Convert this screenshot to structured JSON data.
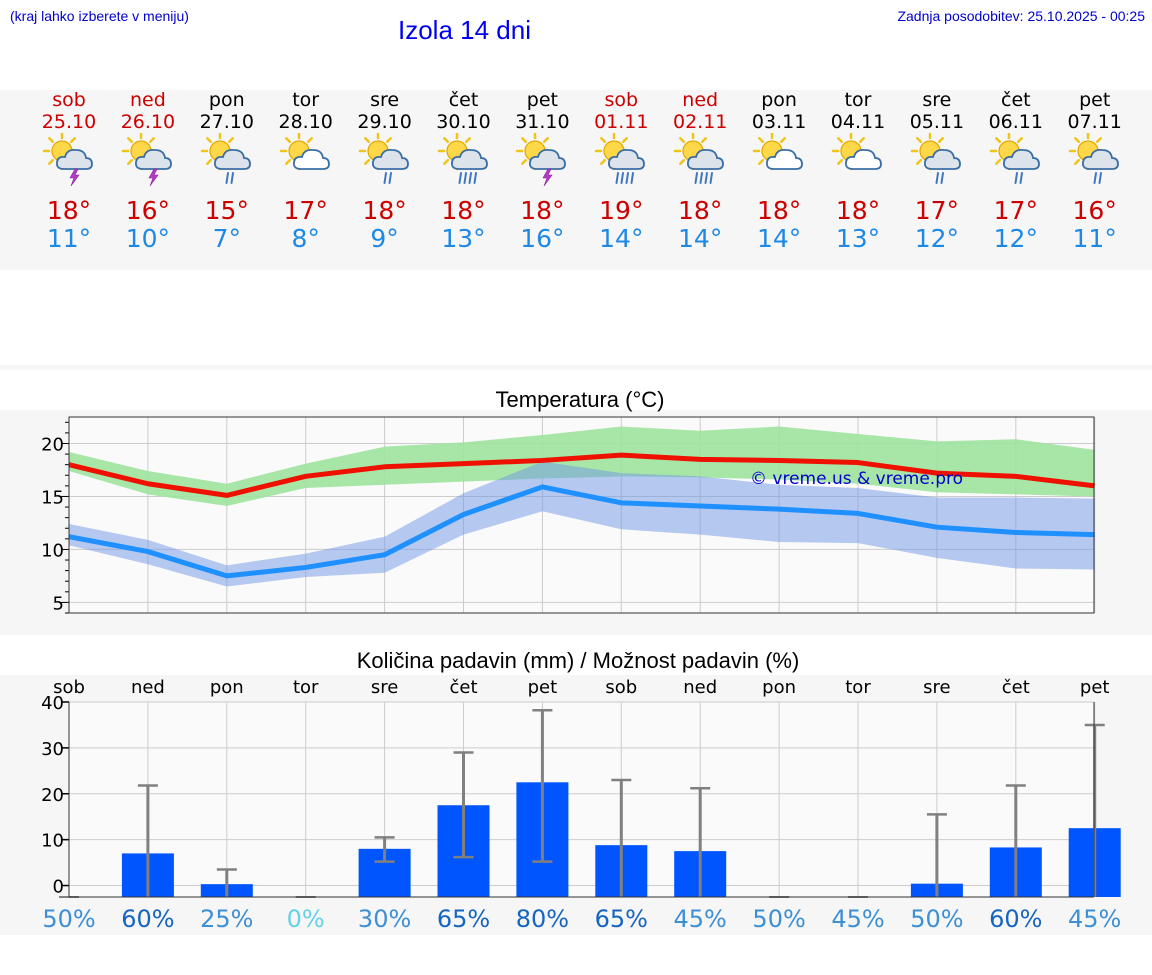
{
  "header": {
    "hint": "(kraj lahko izberete v meniju)",
    "title": "Izola 14 dni",
    "updated": "Zadnja posodobitev: 25.10.2025 - 00:25"
  },
  "days": [
    {
      "name": "sob",
      "date": "25.10",
      "weekend": true,
      "icon": "sun-cloud-thunder",
      "tmax": "18°",
      "tmin": "11°"
    },
    {
      "name": "ned",
      "date": "26.10",
      "weekend": true,
      "icon": "sun-cloud-thunder",
      "tmax": "16°",
      "tmin": "10°"
    },
    {
      "name": "pon",
      "date": "27.10",
      "weekend": false,
      "icon": "sun-cloud-rain",
      "tmax": "15°",
      "tmin": "7°"
    },
    {
      "name": "tor",
      "date": "28.10",
      "weekend": false,
      "icon": "sun-cloud",
      "tmax": "17°",
      "tmin": "8°"
    },
    {
      "name": "sre",
      "date": "29.10",
      "weekend": false,
      "icon": "sun-cloud-rain",
      "tmax": "18°",
      "tmin": "9°"
    },
    {
      "name": "čet",
      "date": "30.10",
      "weekend": false,
      "icon": "sun-cloud-heavy-rain",
      "tmax": "18°",
      "tmin": "13°"
    },
    {
      "name": "pet",
      "date": "31.10",
      "weekend": false,
      "icon": "sun-cloud-thunder",
      "tmax": "18°",
      "tmin": "16°"
    },
    {
      "name": "sob",
      "date": "01.11",
      "weekend": true,
      "icon": "sun-cloud-heavy-rain",
      "tmax": "19°",
      "tmin": "14°"
    },
    {
      "name": "ned",
      "date": "02.11",
      "weekend": true,
      "icon": "sun-cloud-heavy-rain",
      "tmax": "18°",
      "tmin": "14°"
    },
    {
      "name": "pon",
      "date": "03.11",
      "weekend": false,
      "icon": "sun-cloud",
      "tmax": "18°",
      "tmin": "14°"
    },
    {
      "name": "tor",
      "date": "04.11",
      "weekend": false,
      "icon": "sun-cloud",
      "tmax": "18°",
      "tmin": "13°"
    },
    {
      "name": "sre",
      "date": "05.11",
      "weekend": false,
      "icon": "sun-cloud-rain",
      "tmax": "17°",
      "tmin": "12°"
    },
    {
      "name": "čet",
      "date": "06.11",
      "weekend": false,
      "icon": "sun-cloud-rain",
      "tmax": "17°",
      "tmin": "12°"
    },
    {
      "name": "pet",
      "date": "07.11",
      "weekend": false,
      "icon": "sun-cloud-rain",
      "tmax": "16°",
      "tmin": "11°"
    }
  ],
  "colors": {
    "weekend": "#cc0000",
    "weekday": "#000000",
    "max_line": "#ee1100",
    "min_line": "#1e90ff",
    "max_band": "#9ee39e",
    "min_band": "#a8c2f2",
    "bar": "#0055ff",
    "whisker": "#808080",
    "pct_dark": "#1565c0",
    "pct_mid": "#3d8fd6",
    "pct_light": "#64d2e6",
    "watermark": "#0000cc"
  },
  "chart_data": [
    {
      "type": "line",
      "title": "Temperatura (°C)",
      "x": [
        "sob",
        "ned",
        "pon",
        "tor",
        "sre",
        "čet",
        "pet",
        "sob",
        "ned",
        "pon",
        "tor",
        "sre",
        "čet",
        "pet"
      ],
      "ylim": [
        4,
        22.5
      ],
      "yticks": [
        5,
        10,
        15,
        20
      ],
      "grid": true,
      "watermark": "© vreme.us & vreme.pro",
      "series": [
        {
          "role": "max",
          "values": [
            18,
            16.2,
            15.1,
            16.9,
            17.8,
            18.1,
            18.4,
            18.9,
            18.5,
            18.4,
            18.2,
            17.2,
            16.9,
            16
          ],
          "band_low": [
            17.4,
            15.2,
            14.1,
            15.8,
            16.1,
            16.4,
            16.7,
            16.9,
            16.8,
            16.6,
            16.2,
            15.4,
            15.2,
            15
          ],
          "band_high": [
            19.2,
            17.4,
            16.2,
            18.1,
            19.7,
            20.1,
            20.8,
            21.6,
            21.2,
            21.6,
            20.9,
            20.2,
            20.4,
            19.4
          ]
        },
        {
          "role": "min",
          "values": [
            11.2,
            9.8,
            7.5,
            8.3,
            9.5,
            13.3,
            15.9,
            14.4,
            14.1,
            13.8,
            13.4,
            12.1,
            11.6,
            11.4
          ],
          "band_low": [
            10.4,
            8.6,
            6.5,
            7.4,
            7.8,
            11.4,
            13.6,
            11.9,
            11.4,
            10.7,
            10.6,
            9.2,
            8.2,
            8.1
          ],
          "band_high": [
            12.4,
            10.9,
            8.5,
            9.6,
            11.2,
            15.3,
            18.3,
            17.2,
            16.9,
            16.1,
            15.8,
            14.9,
            14.9,
            14.8
          ]
        }
      ]
    },
    {
      "type": "bar",
      "title": "Količina padavin (mm) / Možnost padavin (%)",
      "categories": [
        "sob",
        "ned",
        "pon",
        "tor",
        "sre",
        "čet",
        "pet",
        "sob",
        "ned",
        "pon",
        "tor",
        "sre",
        "čet",
        "pet"
      ],
      "values": [
        0,
        7,
        0.3,
        0,
        8,
        17.5,
        22.5,
        8.8,
        7.5,
        0,
        0,
        0.4,
        8.3,
        12.5
      ],
      "error_low": [
        0,
        0,
        0,
        0,
        5.2,
        6.2,
        5.2,
        0,
        0,
        0,
        0,
        0,
        0,
        0
      ],
      "error_high": [
        0,
        21.8,
        3.5,
        0,
        10.5,
        29,
        38.2,
        23,
        21.2,
        0,
        0,
        15.5,
        21.8,
        35
      ],
      "ylim": [
        -2.5,
        40
      ],
      "yticks": [
        0,
        10,
        20,
        30,
        40
      ],
      "probability": [
        "50%",
        "60%",
        "25%",
        "0%",
        "30%",
        "65%",
        "80%",
        "65%",
        "45%",
        "50%",
        "45%",
        "50%",
        "60%",
        "45%"
      ],
      "grid": true
    }
  ]
}
